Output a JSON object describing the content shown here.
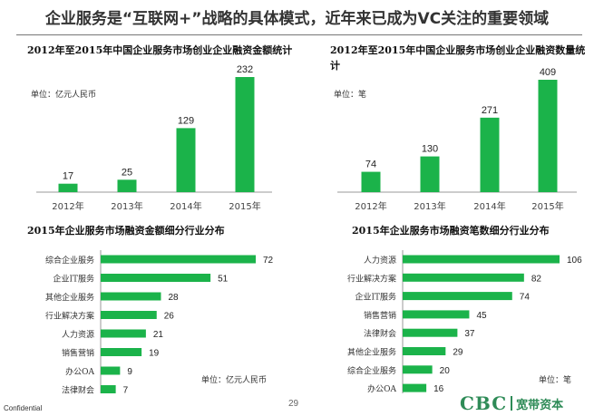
{
  "headline": "企业服务是“互联网+”战略的具体模式，近年来已成为VC关注的重要领域",
  "footer": {
    "confidential": "Confidential",
    "page_number": "29"
  },
  "logo": {
    "mark": "CBC",
    "text": "宽带资本"
  },
  "colors": {
    "bar": "#1bb34a",
    "axis": "#9a9a9a"
  },
  "chart_data": [
    {
      "type": "bar",
      "title": "2012年至2015年中国企业服务市场创业企业融资金额统计",
      "unit_label": "单位：亿元人民币",
      "categories": [
        "2012年",
        "2013年",
        "2014年",
        "2015年"
      ],
      "values": [
        17,
        25,
        129,
        232
      ],
      "ylim": [
        0,
        232
      ],
      "grid": false
    },
    {
      "type": "bar",
      "title": "2012年至2015年中国企业服务市场创业企业融资数量统计",
      "unit_label": "单位：笔",
      "categories": [
        "2012年",
        "2013年",
        "2014年",
        "2015年"
      ],
      "values": [
        74,
        130,
        271,
        409
      ],
      "ylim": [
        0,
        409
      ],
      "grid": false
    },
    {
      "type": "bar",
      "orientation": "horizontal",
      "title": "2015年企业服务市场融资金额细分行业分布",
      "unit_label": "单位：亿元人民币",
      "categories": [
        "综合企业服务",
        "企业IT服务",
        "其他企业服务",
        "行业解决方案",
        "人力资源",
        "销售营销",
        "办公OA",
        "法律财会"
      ],
      "values": [
        72,
        51,
        28,
        26,
        21,
        19,
        9,
        7
      ],
      "xlim": [
        0,
        72
      ],
      "grid": false
    },
    {
      "type": "bar",
      "orientation": "horizontal",
      "title": "2015年企业服务市场融资笔数细分行业分布",
      "unit_label": "单位：笔",
      "categories": [
        "人力资源",
        "行业解决方案",
        "企业IT服务",
        "销售营销",
        "法律财会",
        "其他企业服务",
        "综合企业服务",
        "办公OA"
      ],
      "values": [
        106,
        82,
        74,
        45,
        37,
        29,
        20,
        16
      ],
      "xlim": [
        0,
        106
      ],
      "grid": false
    }
  ]
}
